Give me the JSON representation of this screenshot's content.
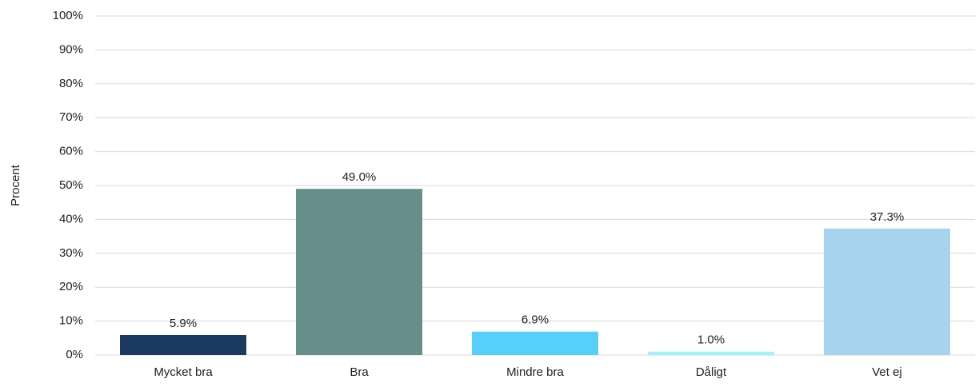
{
  "chart_data": {
    "type": "bar",
    "y_label": "Procent",
    "categories": [
      "Mycket bra",
      "Bra",
      "Mindre bra",
      "Dåligt",
      "Vet ej"
    ],
    "values": [
      5.9,
      49.0,
      6.9,
      1.0,
      37.3
    ],
    "value_labels": [
      "5.9%",
      "49.0%",
      "6.9%",
      "1.0%",
      "37.3%"
    ],
    "colors": [
      "#1a3b5f",
      "#668f8b",
      "#55d0fb",
      "#9ef4fa",
      "#a8d3ee"
    ],
    "ylim": [
      0,
      100
    ],
    "yticks": [
      {
        "value": 0,
        "label": "0%"
      },
      {
        "value": 10,
        "label": "10%"
      },
      {
        "value": 20,
        "label": "20%"
      },
      {
        "value": 30,
        "label": "30%"
      },
      {
        "value": 40,
        "label": "40%"
      },
      {
        "value": 50,
        "label": "50%"
      },
      {
        "value": 60,
        "label": "60%"
      },
      {
        "value": 70,
        "label": "70%"
      },
      {
        "value": 80,
        "label": "80%"
      },
      {
        "value": 90,
        "label": "90%"
      },
      {
        "value": 100,
        "label": "100%"
      }
    ],
    "grid": true
  }
}
